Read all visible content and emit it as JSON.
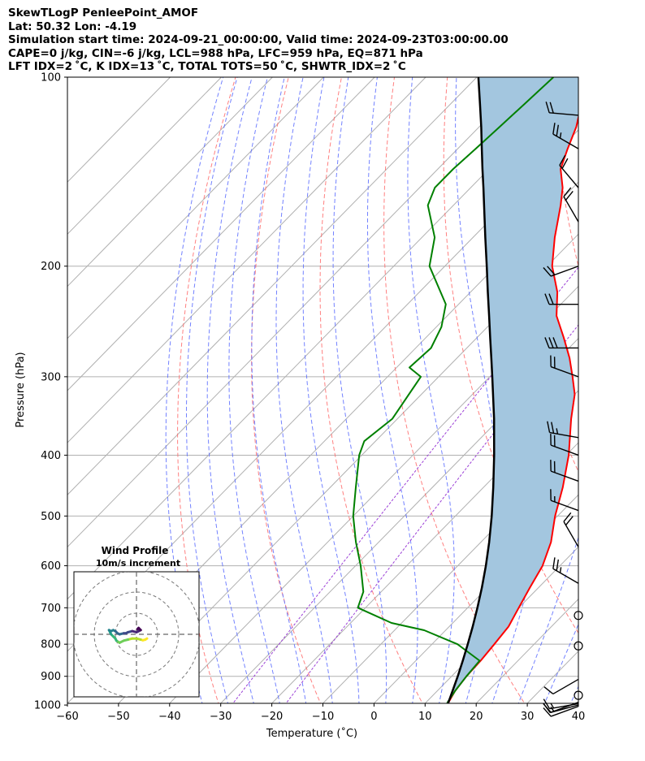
{
  "header": {
    "line1": "SkewTLogP PenleePoint_AMOF",
    "line2": "Lat: 50.32   Lon: -4.19",
    "line3": "Simulation start time: 2024-09-21_00:00:00, Valid time: 2024-09-23T03:00:00.00",
    "line4": "CAPE=0 j/kg, CIN=-6 j/kg, LCL=988 hPa, LFC=959 hPa, EQ=871 hPa",
    "line5": "LFT IDX=2 ˚C, K IDX=13 ˚C, TOTAL TOTS=50 ˚C, SHWTR_IDX=2 ˚C"
  },
  "colors": {
    "temperature": "#ff0000",
    "dewpoint": "#008000",
    "parcel": "#000000",
    "shade": "#a3c6df",
    "dry_adiabat": "#ff6a6a",
    "moist_adiabat": "#5a6cff",
    "mixing_ratio": "#9b3fd6",
    "isotherm": "#b0b0b0"
  },
  "chart_data": {
    "type": "line",
    "title": "SkewTLogP PenleePoint_AMOF",
    "xlabel": "Temperature (˚C)",
    "ylabel": "Pressure (hPa)",
    "xlim": [
      -60,
      40
    ],
    "ylim": [
      1050,
      100
    ],
    "x_ticks": [
      -60,
      -50,
      -40,
      -30,
      -20,
      -10,
      0,
      10,
      20,
      30,
      40
    ],
    "y_ticks": [
      1000,
      900,
      800,
      700,
      600,
      500,
      400,
      300,
      200,
      100
    ],
    "grid": true,
    "series": [
      {
        "name": "Temperature",
        "pressure": [
          1000,
          990,
          950,
          900,
          850,
          800,
          750,
          700,
          650,
          600,
          550,
          500,
          450,
          400,
          350,
          320,
          300,
          280,
          260,
          240,
          220,
          200,
          180,
          160,
          150,
          140,
          130,
          120,
          110,
          100
        ],
        "values": [
          14.9,
          14.4,
          13.5,
          12.9,
          12.7,
          12.2,
          11.6,
          10.0,
          8.3,
          6.6,
          3.7,
          -0.5,
          -4.5,
          -9.5,
          -16.0,
          -20.0,
          -23.8,
          -28.0,
          -33.0,
          -38.6,
          -43.0,
          -49.0,
          -54.0,
          -59.0,
          -62.0,
          -66.0,
          -68.5,
          -71.0,
          -74.5,
          -78.0
        ]
      },
      {
        "name": "Dewpoint",
        "pressure": [
          1000,
          990,
          950,
          900,
          850,
          800,
          760,
          740,
          700,
          660,
          600,
          550,
          500,
          450,
          400,
          380,
          350,
          300,
          290,
          270,
          250,
          230,
          200,
          180,
          160,
          150,
          140,
          130,
          120,
          110,
          100
        ],
        "values": [
          14.5,
          14.2,
          13.5,
          12.9,
          12.5,
          5.0,
          -4.2,
          -12.0,
          -21.5,
          -23.5,
          -29.0,
          -34.5,
          -40.0,
          -45.0,
          -50.5,
          -52.2,
          -51.0,
          -53.5,
          -57.5,
          -57.0,
          -59.0,
          -62.5,
          -73.0,
          -77.5,
          -85.0,
          -87.0,
          -87.0,
          -86.5,
          -86.0,
          -85.5,
          -85.0
        ]
      },
      {
        "name": "Parcel",
        "pressure": [
          1000,
          988,
          950,
          900,
          850,
          800,
          750,
          700,
          650,
          600,
          550,
          500,
          450,
          400,
          350,
          300,
          280,
          260,
          240,
          220,
          200,
          180,
          160,
          150,
          140,
          130,
          120,
          110,
          100
        ],
        "values": [
          14.7,
          14.3,
          13.0,
          11.2,
          9.2,
          7.0,
          4.6,
          1.9,
          -1.1,
          -4.5,
          -8.4,
          -12.9,
          -18.1,
          -24.1,
          -31.1,
          -39.5,
          -43.3,
          -47.4,
          -51.8,
          -56.6,
          -61.8,
          -67.6,
          -74.0,
          -77.5,
          -81.3,
          -85.3,
          -89.6,
          -94.4,
          -99.7
        ]
      }
    ],
    "wind_barbs": {
      "pressure": [
        1005,
        1000,
        995,
        990,
        965,
        910,
        805,
        720,
        640,
        560,
        490,
        440,
        400,
        375,
        300,
        270,
        230,
        200,
        170,
        150,
        130,
        115
      ],
      "speed_kt": [
        10,
        15,
        15,
        10,
        0,
        10,
        0,
        0,
        25,
        20,
        15,
        20,
        20,
        25,
        20,
        30,
        20,
        20,
        20,
        20,
        25,
        20
      ],
      "direction_deg": [
        250,
        255,
        260,
        250,
        0,
        240,
        0,
        0,
        300,
        330,
        290,
        290,
        290,
        280,
        290,
        270,
        270,
        250,
        330,
        320,
        300,
        275
      ]
    },
    "hodograph": {
      "title": "Wind Profile",
      "subtitle": "10m/s increment",
      "u": [
        5,
        4.2,
        3,
        2,
        0,
        -2,
        -4,
        -6,
        -8,
        -9.5,
        -10,
        -11,
        -12,
        -12.5,
        -13,
        -12,
        -11,
        -10,
        -9,
        -8,
        -6,
        -5,
        -4,
        -2,
        0,
        1,
        2,
        1,
        0.5
      ],
      "v": [
        -2,
        -2.5,
        -2.8,
        -2.5,
        -2,
        -2,
        -2.5,
        -3,
        -4,
        -3,
        -2,
        -1,
        0,
        1,
        2,
        1.5,
        2,
        1.5,
        0.5,
        0,
        0.5,
        0.5,
        1,
        1.5,
        1,
        1.5,
        2,
        3,
        2.5
      ]
    }
  }
}
